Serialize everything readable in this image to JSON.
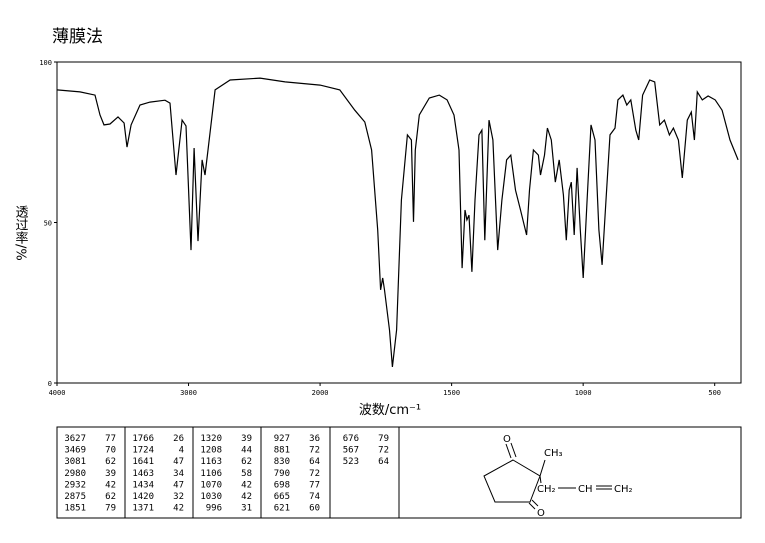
{
  "chart_data": {
    "type": "line",
    "title": "薄膜法",
    "xlabel": "波数/cm⁻¹",
    "ylabel": "透过率/%",
    "x": [
      4000,
      3825,
      3711,
      3673,
      3643,
      3597,
      3536,
      3490,
      3468,
      3437,
      3369,
      3293,
      3179,
      3141,
      3095,
      3049,
      3019,
      2981,
      2958,
      2928,
      2897,
      2875,
      2852,
      2798,
      2684,
      2456,
      2266,
      2000,
      1925,
      1868,
      1830,
      1804,
      1781,
      1770,
      1762,
      1755,
      1736,
      1725,
      1709,
      1691,
      1668,
      1653,
      1645,
      1638,
      1623,
      1585,
      1547,
      1517,
      1491,
      1472,
      1460,
      1449,
      1442,
      1434,
      1423,
      1411,
      1396,
      1385,
      1374,
      1358,
      1343,
      1325,
      1309,
      1291,
      1275,
      1257,
      1238,
      1215,
      1204,
      1189,
      1170,
      1162,
      1147,
      1136,
      1121,
      1106,
      1091,
      1075,
      1064,
      1053,
      1045,
      1034,
      1023,
      1011,
      1000,
      985,
      970,
      955,
      940,
      928,
      913,
      898,
      879,
      868,
      849,
      834,
      819,
      800,
      789,
      774,
      747,
      728,
      709,
      691,
      672,
      657,
      638,
      623,
      604,
      589,
      577,
      566,
      547,
      525,
      498,
      472,
      442,
      411
    ],
    "values": [
      91.3,
      90.7,
      89.7,
      83.5,
      80.4,
      80.7,
      82.9,
      81.0,
      73.5,
      80.4,
      86.6,
      87.5,
      88.1,
      87.2,
      64.8,
      81.9,
      80.1,
      41.4,
      73.2,
      44.2,
      69.5,
      64.8,
      72.6,
      91.3,
      94.4,
      95.0,
      93.8,
      92.8,
      91.3,
      85.0,
      81.3,
      72.6,
      47.7,
      29.0,
      32.7,
      29.0,
      16.5,
      5.0,
      16.5,
      57.0,
      77.3,
      75.7,
      50.2,
      72.6,
      83.5,
      88.8,
      89.7,
      88.2,
      83.5,
      72.6,
      35.8,
      53.9,
      50.8,
      52.3,
      34.6,
      57.0,
      77.3,
      78.8,
      44.5,
      81.9,
      75.7,
      41.4,
      57.0,
      69.5,
      71.0,
      60.1,
      53.9,
      46.1,
      60.1,
      72.6,
      71.0,
      64.8,
      71.0,
      79.4,
      75.7,
      62.6,
      69.5,
      58.6,
      44.5,
      60.1,
      62.6,
      46.1,
      67.0,
      47.7,
      32.7,
      57.0,
      80.4,
      75.7,
      47.7,
      36.8,
      57.0,
      77.3,
      79.4,
      88.2,
      89.7,
      86.6,
      88.2,
      78.8,
      75.7,
      89.7,
      94.4,
      93.8,
      80.4,
      81.9,
      77.3,
      79.4,
      75.7,
      63.9,
      81.9,
      84.4,
      75.7,
      90.7,
      88.2,
      89.4,
      88.2,
      85.0,
      75.7,
      69.5
    ],
    "color": "#000000",
    "xlim": [
      4000,
      400
    ],
    "x_scale_change": {
      "at": 2000,
      "factor": 2
    },
    "xticks": [
      4000,
      3000,
      2000,
      1500,
      1000,
      500
    ],
    "ylim": [
      0,
      100
    ],
    "yticks": [
      0,
      50,
      100
    ],
    "grid": false
  },
  "peak_table": [
    [
      [
        3627,
        77
      ],
      [
        3469,
        70
      ],
      [
        3081,
        62
      ],
      [
        2980,
        39
      ],
      [
        2932,
        42
      ],
      [
        2875,
        62
      ],
      [
        1851,
        79
      ]
    ],
    [
      [
        1766,
        26
      ],
      [
        1724,
        4
      ],
      [
        1641,
        47
      ],
      [
        1463,
        34
      ],
      [
        1434,
        47
      ],
      [
        1420,
        32
      ],
      [
        1371,
        42
      ]
    ],
    [
      [
        1320,
        39
      ],
      [
        1208,
        44
      ],
      [
        1163,
        62
      ],
      [
        1106,
        58
      ],
      [
        1070,
        42
      ],
      [
        1030,
        42
      ],
      [
        996,
        31
      ]
    ],
    [
      [
        927,
        36
      ],
      [
        881,
        72
      ],
      [
        830,
        64
      ],
      [
        790,
        72
      ],
      [
        698,
        77
      ],
      [
        665,
        74
      ],
      [
        621,
        60
      ]
    ],
    [
      [
        676,
        79
      ],
      [
        567,
        72
      ],
      [
        523,
        64
      ]
    ]
  ],
  "structure": {
    "labels": [
      "O",
      "CH₃",
      "CH₂",
      "CH",
      "CH₂",
      "O"
    ]
  }
}
